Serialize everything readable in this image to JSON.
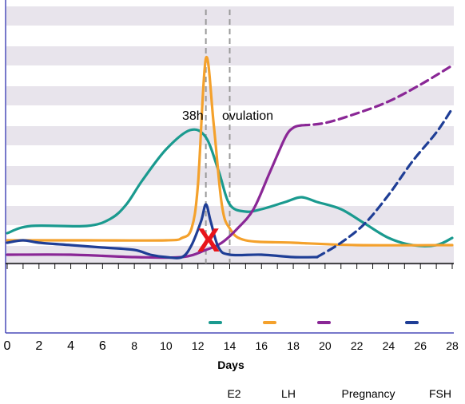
{
  "chart_data": {
    "type": "line",
    "title": "",
    "xlabel": "Days",
    "ylabel": "",
    "xlim": [
      0,
      28
    ],
    "x_ticks": [
      0,
      2,
      4,
      6,
      8,
      10,
      12,
      14,
      16,
      18,
      20,
      22,
      24,
      26,
      28
    ],
    "grid": "horizontal bands",
    "legend_position": "bottom",
    "annotations": [
      {
        "text": "38h",
        "x": 12.5
      },
      {
        "text": "ovulation",
        "x": 14
      },
      {
        "text": "X",
        "x": 12.5,
        "color": "#e8151b"
      }
    ],
    "vlines": [
      12.5,
      14
    ],
    "series": [
      {
        "name": "E2",
        "color": "#1a9a8f",
        "style": "solid",
        "points": [
          [
            0,
            0.1
          ],
          [
            1.5,
            0.13
          ],
          [
            5,
            0.13
          ],
          [
            6.5,
            0.16
          ],
          [
            7.5,
            0.22
          ],
          [
            8.5,
            0.32
          ],
          [
            10,
            0.45
          ],
          [
            11.5,
            0.53
          ],
          [
            12.5,
            0.5
          ],
          [
            13.3,
            0.36
          ],
          [
            14,
            0.22
          ],
          [
            15,
            0.19
          ],
          [
            16,
            0.2
          ],
          [
            17.5,
            0.23
          ],
          [
            18.5,
            0.25
          ],
          [
            19.5,
            0.23
          ],
          [
            21,
            0.2
          ],
          [
            22.5,
            0.14
          ],
          [
            24,
            0.08
          ],
          [
            25.5,
            0.05
          ],
          [
            27,
            0.05
          ],
          [
            28,
            0.08
          ]
        ]
      },
      {
        "name": "LH",
        "color": "#f4a12c",
        "style": "solid",
        "points": [
          [
            0,
            0.07
          ],
          [
            5,
            0.07
          ],
          [
            10,
            0.07
          ],
          [
            11,
            0.08
          ],
          [
            11.6,
            0.12
          ],
          [
            12,
            0.3
          ],
          [
            12.5,
            0.83
          ],
          [
            13,
            0.55
          ],
          [
            13.5,
            0.22
          ],
          [
            14,
            0.12
          ],
          [
            15,
            0.07
          ],
          [
            18,
            0.06
          ],
          [
            22,
            0.05
          ],
          [
            28,
            0.05
          ]
        ]
      },
      {
        "name": "Pregnancy",
        "color": "#8a2796",
        "style": "solid",
        "points": [
          [
            0,
            0.01
          ],
          [
            4,
            0.01
          ],
          [
            8,
            0.0
          ],
          [
            11,
            0.0
          ],
          [
            12.5,
            0.03
          ],
          [
            13.5,
            0.06
          ],
          [
            14.5,
            0.12
          ],
          [
            15.5,
            0.2
          ],
          [
            16.5,
            0.35
          ],
          [
            17.5,
            0.5
          ],
          [
            18,
            0.54
          ],
          [
            18.5,
            0.55
          ]
        ]
      },
      {
        "name": "Pregnancy",
        "color": "#8a2796",
        "style": "dashed",
        "points": [
          [
            18.5,
            0.55
          ],
          [
            20,
            0.56
          ],
          [
            22,
            0.6
          ],
          [
            24,
            0.65
          ],
          [
            26,
            0.72
          ],
          [
            28,
            0.8
          ]
        ]
      },
      {
        "name": "FSH",
        "color": "#1f3e96",
        "style": "solid",
        "points": [
          [
            0,
            0.06
          ],
          [
            1,
            0.07
          ],
          [
            2,
            0.06
          ],
          [
            4,
            0.05
          ],
          [
            6,
            0.04
          ],
          [
            8,
            0.03
          ],
          [
            9,
            0.01
          ],
          [
            10,
            0.0
          ],
          [
            11,
            0.0
          ],
          [
            11.6,
            0.05
          ],
          [
            12.2,
            0.15
          ],
          [
            12.5,
            0.22
          ],
          [
            12.8,
            0.15
          ],
          [
            13.3,
            0.04
          ],
          [
            14,
            0.01
          ],
          [
            16,
            0.01
          ],
          [
            18,
            0.0
          ],
          [
            19.5,
            0.0
          ]
        ]
      },
      {
        "name": "FSH",
        "color": "#1f3e96",
        "style": "dashed",
        "points": [
          [
            19.5,
            0.0
          ],
          [
            21,
            0.06
          ],
          [
            22.5,
            0.14
          ],
          [
            24,
            0.26
          ],
          [
            25.5,
            0.4
          ],
          [
            27,
            0.52
          ],
          [
            28,
            0.62
          ]
        ]
      }
    ]
  },
  "x_title": "Days",
  "annot_38h": "38h",
  "annot_ovulation": "ovulation",
  "annot_cross": "X",
  "legend": {
    "e2": {
      "label": "E2",
      "color": "#1a9a8f"
    },
    "lh": {
      "label": "LH",
      "color": "#f4a12c"
    },
    "pregnancy": {
      "label": "Pregnancy",
      "color": "#8a2796"
    },
    "fsh": {
      "label": "FSH",
      "color": "#1f3e96"
    }
  }
}
